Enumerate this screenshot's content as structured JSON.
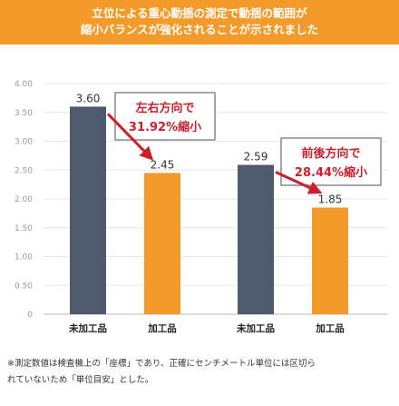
{
  "header": {
    "line1": "立位による重心動揺の測定で動揺の範囲が",
    "line2": "縮小バランスが強化されることが示されました"
  },
  "colors": {
    "header_bg": "#f39a2a",
    "bar_untreated": "#4e5b6e",
    "bar_processed": "#f39a2a",
    "callout_text": "#cc1f2d",
    "arrow": "#cc1f2d",
    "grid": "#e6e6e6"
  },
  "chart_data": {
    "type": "bar",
    "ylim": [
      0,
      4.0
    ],
    "yticks": [
      "0",
      "0.50",
      "1.00",
      "1.50",
      "2.00",
      "2.50",
      "3.00",
      "3.50",
      "4.00"
    ],
    "grid": true,
    "groups": [
      {
        "bars": [
          {
            "label": "未加工品",
            "value": 3.6,
            "value_label": "3.60",
            "kind": "untreated"
          },
          {
            "label": "加工品",
            "value": 2.45,
            "value_label": "2.45",
            "kind": "processed"
          }
        ],
        "callout": {
          "line1": "左右方向で",
          "line2": "31.92%縮小"
        }
      },
      {
        "bars": [
          {
            "label": "未加工品",
            "value": 2.59,
            "value_label": "2.59",
            "kind": "untreated"
          },
          {
            "label": "加工品",
            "value": 1.85,
            "value_label": "1.85",
            "kind": "processed"
          }
        ],
        "callout": {
          "line1": "前後方向で",
          "line2": "28.44%縮小"
        }
      }
    ]
  },
  "footnote": {
    "line1": "※測定数値は検査機上の「座標」であり、正確にセンチメートル単位には区切ら",
    "line2": "れていないため「単位目安」とした。"
  }
}
